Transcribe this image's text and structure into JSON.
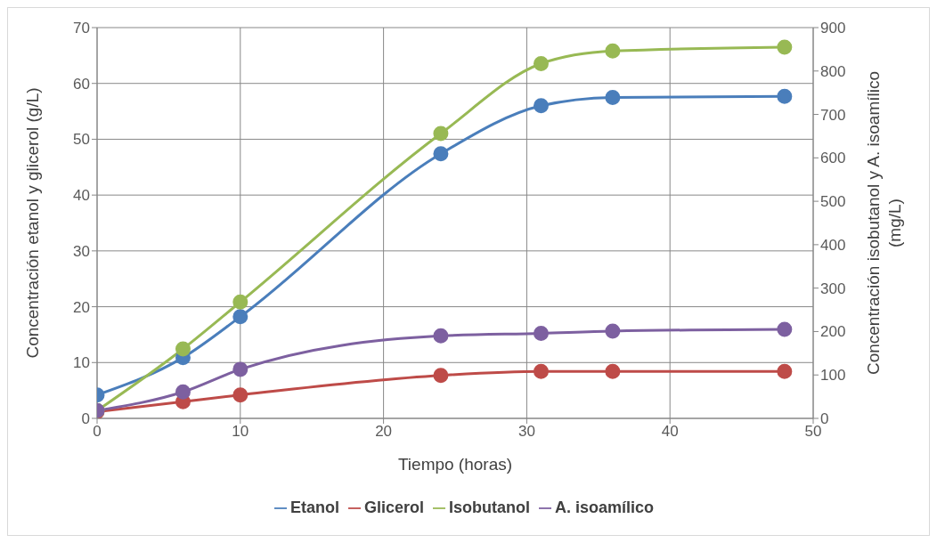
{
  "chart_data": {
    "type": "line",
    "xlabel": "Tiempo (horas)",
    "ylabel": "Concentración etanol y glicerol (g/L)",
    "y2label": "Concentración isobutanol y A. isoamílico (mg/L)",
    "x": [
      0,
      6,
      10,
      24,
      31,
      36,
      48
    ],
    "xlim": [
      0,
      50
    ],
    "xticks": [
      0,
      10,
      20,
      30,
      40,
      50
    ],
    "ylim": [
      0,
      70
    ],
    "yticks": [
      0,
      10,
      20,
      30,
      40,
      50,
      60,
      70
    ],
    "y2lim": [
      0,
      900
    ],
    "y2ticks": [
      0,
      100,
      200,
      300,
      400,
      500,
      600,
      700,
      800,
      900
    ],
    "grid": true,
    "legend": "bottom",
    "marker": "circle",
    "line_style": "solid",
    "series": [
      {
        "name": "Etanol",
        "color": "#4a7ebb",
        "values": [
          4.2,
          10.9,
          18.2,
          47.4,
          56,
          57.5,
          57.7
        ]
      },
      {
        "name": "Glicerol",
        "color": "#be4b48",
        "values": [
          1.2,
          3.0,
          4.2,
          7.7,
          8.4,
          8.4,
          8.4
        ]
      },
      {
        "name": "Isobutanol",
        "color": "#98b954",
        "axis": "y2",
        "values": [
          18,
          160,
          268,
          656,
          817,
          846,
          855
        ]
      },
      {
        "name": "A. isoamílico",
        "color": "#7d60a0",
        "axis": "y2",
        "values": [
          18,
          61,
          113,
          190,
          196,
          201,
          205
        ]
      }
    ]
  }
}
